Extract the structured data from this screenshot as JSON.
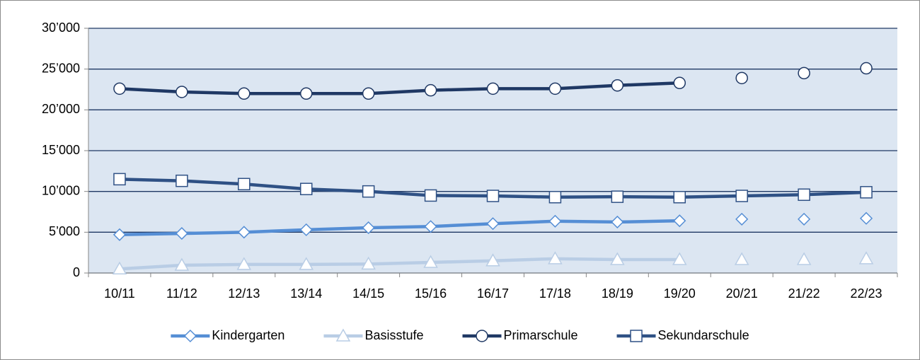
{
  "chart_data": {
    "type": "line",
    "categories": [
      "10/11",
      "11/12",
      "12/13",
      "13/14",
      "14/15",
      "15/16",
      "16/17",
      "17/18",
      "18/19",
      "19/20",
      "20/21",
      "21/22",
      "22/23"
    ],
    "ylim": [
      0,
      30000
    ],
    "yticks": [
      {
        "value": 0,
        "label": "0"
      },
      {
        "value": 5000,
        "label": "5’000"
      },
      {
        "value": 10000,
        "label": "10’000"
      },
      {
        "value": 15000,
        "label": "15’000"
      },
      {
        "value": 20000,
        "label": "20’000"
      },
      {
        "value": 25000,
        "label": "25’000"
      },
      {
        "value": 30000,
        "label": "30’000"
      }
    ],
    "grid": true,
    "legend": "bottom",
    "series": [
      {
        "name": "Kindergarten",
        "color": "#558ed5",
        "marker": "diamond",
        "marker_only_from": "20/21",
        "values": [
          4700,
          4850,
          5000,
          5300,
          5550,
          5700,
          6050,
          6350,
          6250,
          6400,
          6600,
          6600,
          6700
        ]
      },
      {
        "name": "Basisstufe",
        "color": "#b9cde5",
        "marker": "triangle",
        "marker_only_from": "20/21",
        "values": [
          500,
          950,
          1050,
          1050,
          1100,
          1300,
          1500,
          1750,
          1650,
          1650,
          1650,
          1650,
          1750
        ]
      },
      {
        "name": "Primarschule",
        "color": "#1f3864",
        "marker": "circle",
        "marker_only_from": "20/21",
        "values": [
          22600,
          22200,
          22000,
          22000,
          22000,
          22400,
          22600,
          22600,
          23000,
          23300,
          23900,
          24500,
          25100
        ]
      },
      {
        "name": "Sekundarschule",
        "color": "#2f5185",
        "marker": "square",
        "values": [
          11500,
          11300,
          10900,
          10300,
          10000,
          9500,
          9450,
          9300,
          9350,
          9300,
          9450,
          9600,
          9900
        ]
      }
    ]
  }
}
